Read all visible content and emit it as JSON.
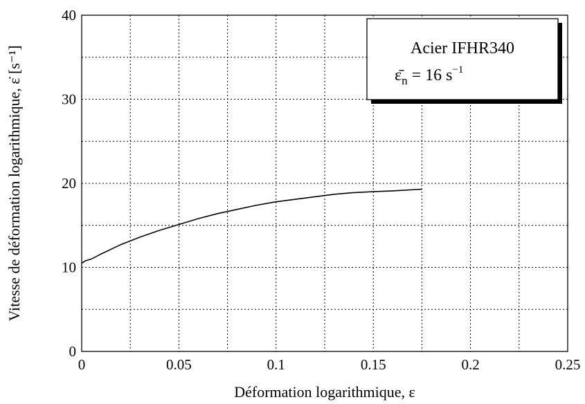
{
  "chart_data": {
    "type": "line",
    "xlabel": "Déformation logarithmique, ε",
    "ylabel": "Vitesse de déformation logarithmique, ε̇ [s⁻¹]",
    "xlim": [
      0,
      0.25
    ],
    "ylim": [
      0,
      40
    ],
    "x_ticks": [
      0,
      0.05,
      0.1,
      0.15,
      0.2,
      0.25
    ],
    "x_tick_labels": [
      "0",
      "0.05",
      "0.1",
      "0.15",
      "0.2",
      "0.25"
    ],
    "y_ticks": [
      0,
      10,
      20,
      30,
      40
    ],
    "y_tick_labels": [
      "0",
      "10",
      "20",
      "30",
      "40"
    ],
    "x_minor_step": 0.025,
    "y_minor_step": 5,
    "grid": true,
    "legend": {
      "placement": "top-right",
      "line1": "Acier IFHR340",
      "line2_symbol": "ε̄",
      "line2_subscript": "n",
      "line2_value": "= 16  s",
      "line2_exponent": "−1"
    },
    "series": [
      {
        "x": [
          0,
          0.002,
          0.005,
          0.01,
          0.02,
          0.03,
          0.04,
          0.05,
          0.06,
          0.07,
          0.08,
          0.09,
          0.1,
          0.11,
          0.12,
          0.13,
          0.14,
          0.15,
          0.16,
          0.175
        ],
        "y": [
          10.5,
          10.8,
          11.0,
          11.6,
          12.7,
          13.6,
          14.4,
          15.1,
          15.8,
          16.4,
          16.9,
          17.4,
          17.8,
          18.1,
          18.4,
          18.7,
          18.9,
          19.0,
          19.1,
          19.3
        ]
      }
    ]
  }
}
